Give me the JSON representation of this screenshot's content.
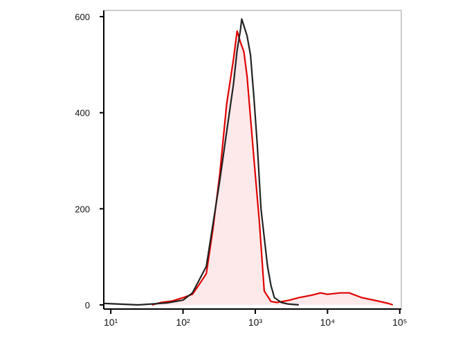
{
  "chart_data": {
    "type": "line",
    "xscale": "log",
    "xlim": [
      8,
      105000
    ],
    "ylim": [
      0,
      613
    ],
    "xticks": [
      {
        "value": 10,
        "label": "10¹"
      },
      {
        "value": 100,
        "label": "10²"
      },
      {
        "value": 1000,
        "label": "10³"
      },
      {
        "value": 10000,
        "label": "10⁴"
      },
      {
        "value": 100000,
        "label": "10⁵"
      }
    ],
    "yticks": [
      0,
      200,
      400,
      600
    ],
    "series": [
      {
        "color": "#222222",
        "x": [
          8,
          24,
          60,
          100,
          135,
          210,
          324,
          402,
          500,
          560,
          620,
          650,
          770,
          860,
          960,
          1070,
          1200,
          1480,
          1650,
          1840,
          2300,
          2800,
          4000
        ],
        "values": [
          3,
          0,
          4,
          10,
          25,
          80,
          260,
          360,
          460,
          530,
          570,
          595,
          560,
          520,
          430,
          330,
          200,
          80,
          40,
          15,
          5,
          2,
          0
        ]
      },
      {
        "color": "#e00000",
        "fill": "#fde8ea",
        "x": [
          37,
          50,
          70,
          100,
          135,
          168,
          210,
          260,
          324,
          402,
          500,
          560,
          620,
          695,
          770,
          960,
          1140,
          1330,
          1650,
          2000,
          3000,
          4000,
          6000,
          8000,
          10000,
          15000,
          20000,
          30000,
          50000,
          70000,
          80000
        ],
        "values": [
          0,
          5,
          8,
          15,
          22,
          43,
          65,
          159,
          274,
          418,
          512,
          570,
          548,
          527,
          476,
          303,
          173,
          29,
          7,
          5,
          10,
          15,
          20,
          25,
          22,
          25,
          25,
          15,
          8,
          3,
          0
        ]
      }
    ]
  }
}
